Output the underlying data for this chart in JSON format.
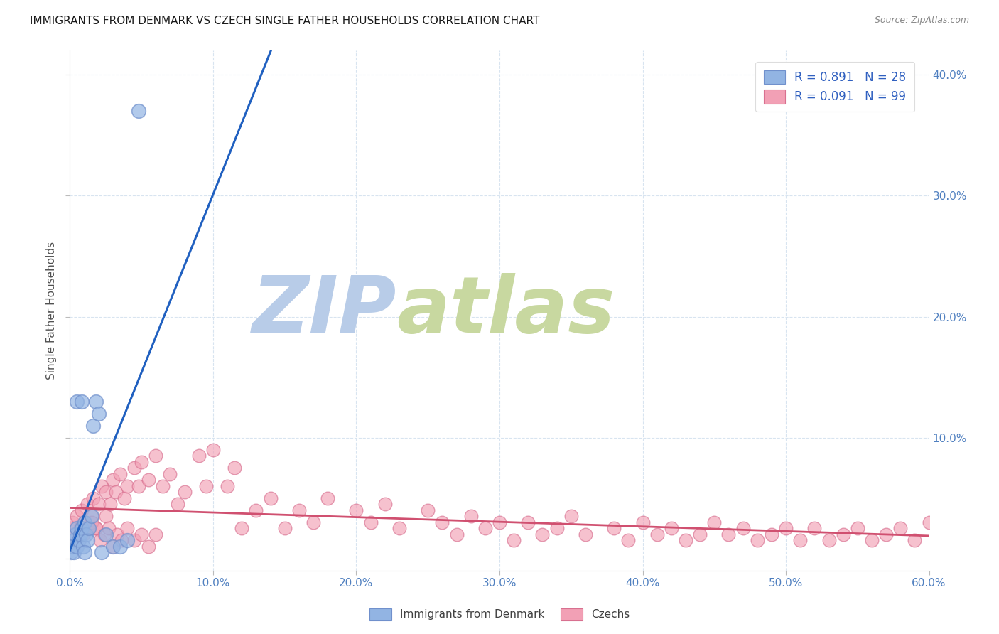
{
  "title": "IMMIGRANTS FROM DENMARK VS CZECH SINGLE FATHER HOUSEHOLDS CORRELATION CHART",
  "source": "Source: ZipAtlas.com",
  "ylabel": "Single Father Households",
  "xlim": [
    0.0,
    0.6
  ],
  "ylim": [
    -0.01,
    0.42
  ],
  "xticks": [
    0.0,
    0.1,
    0.2,
    0.3,
    0.4,
    0.5,
    0.6
  ],
  "yticks": [
    0.0,
    0.1,
    0.2,
    0.3,
    0.4
  ],
  "xticklabels": [
    "0.0%",
    "10.0%",
    "20.0%",
    "30.0%",
    "40.0%",
    "50.0%",
    "60.0%"
  ],
  "yticklabels_right": [
    "",
    "10.0%",
    "20.0%",
    "30.0%",
    "40.0%"
  ],
  "legend_bottom_labels": [
    "Immigrants from Denmark",
    "Czechs"
  ],
  "blue_color": "#92B4E3",
  "blue_edge_color": "#7090CC",
  "pink_color": "#F2A0B5",
  "pink_edge_color": "#D87090",
  "blue_line_color": "#2060C0",
  "pink_line_color": "#D05070",
  "R_blue": 0.891,
  "N_blue": 28,
  "R_pink": 0.091,
  "N_pink": 99,
  "watermark_zip": "ZIP",
  "watermark_atlas": "atlas",
  "watermark_color_zip": "#B8CCE8",
  "watermark_color_atlas": "#C8D8A0",
  "background_color": "#FFFFFF",
  "grid_color": "#D8E4F0",
  "blue_scatter_x": [
    0.001,
    0.002,
    0.003,
    0.003,
    0.004,
    0.005,
    0.005,
    0.006,
    0.007,
    0.008,
    0.009,
    0.01,
    0.011,
    0.012,
    0.013,
    0.015,
    0.016,
    0.018,
    0.02,
    0.022,
    0.025,
    0.03,
    0.035,
    0.04,
    0.005,
    0.008,
    0.01,
    0.048
  ],
  "blue_scatter_y": [
    0.005,
    0.01,
    0.015,
    0.005,
    0.02,
    0.025,
    0.01,
    0.015,
    0.02,
    0.025,
    0.01,
    0.03,
    0.02,
    0.015,
    0.025,
    0.035,
    0.11,
    0.13,
    0.12,
    0.005,
    0.02,
    0.01,
    0.01,
    0.015,
    0.13,
    0.13,
    0.005,
    0.37
  ],
  "pink_scatter_x": [
    0.001,
    0.002,
    0.003,
    0.005,
    0.007,
    0.008,
    0.01,
    0.012,
    0.013,
    0.015,
    0.016,
    0.018,
    0.02,
    0.022,
    0.025,
    0.025,
    0.028,
    0.03,
    0.032,
    0.035,
    0.038,
    0.04,
    0.045,
    0.048,
    0.05,
    0.055,
    0.06,
    0.065,
    0.07,
    0.075,
    0.08,
    0.09,
    0.095,
    0.1,
    0.11,
    0.115,
    0.12,
    0.13,
    0.14,
    0.15,
    0.16,
    0.17,
    0.18,
    0.2,
    0.21,
    0.22,
    0.23,
    0.25,
    0.26,
    0.27,
    0.28,
    0.29,
    0.3,
    0.31,
    0.32,
    0.33,
    0.34,
    0.35,
    0.36,
    0.38,
    0.39,
    0.4,
    0.41,
    0.42,
    0.43,
    0.44,
    0.45,
    0.46,
    0.47,
    0.48,
    0.49,
    0.5,
    0.51,
    0.52,
    0.53,
    0.54,
    0.55,
    0.56,
    0.57,
    0.58,
    0.59,
    0.6,
    0.003,
    0.006,
    0.009,
    0.012,
    0.015,
    0.018,
    0.021,
    0.024,
    0.027,
    0.03,
    0.033,
    0.036,
    0.04,
    0.045,
    0.05,
    0.055,
    0.06
  ],
  "pink_scatter_y": [
    0.025,
    0.03,
    0.02,
    0.035,
    0.025,
    0.04,
    0.03,
    0.045,
    0.025,
    0.035,
    0.05,
    0.025,
    0.045,
    0.06,
    0.055,
    0.035,
    0.045,
    0.065,
    0.055,
    0.07,
    0.05,
    0.06,
    0.075,
    0.06,
    0.08,
    0.065,
    0.085,
    0.06,
    0.07,
    0.045,
    0.055,
    0.085,
    0.06,
    0.09,
    0.06,
    0.075,
    0.025,
    0.04,
    0.05,
    0.025,
    0.04,
    0.03,
    0.05,
    0.04,
    0.03,
    0.045,
    0.025,
    0.04,
    0.03,
    0.02,
    0.035,
    0.025,
    0.03,
    0.015,
    0.03,
    0.02,
    0.025,
    0.035,
    0.02,
    0.025,
    0.015,
    0.03,
    0.02,
    0.025,
    0.015,
    0.02,
    0.03,
    0.02,
    0.025,
    0.015,
    0.02,
    0.025,
    0.015,
    0.025,
    0.015,
    0.02,
    0.025,
    0.015,
    0.02,
    0.025,
    0.015,
    0.03,
    0.01,
    0.015,
    0.02,
    0.025,
    0.03,
    0.025,
    0.015,
    0.02,
    0.025,
    0.01,
    0.02,
    0.015,
    0.025,
    0.015,
    0.02,
    0.01,
    0.02
  ]
}
